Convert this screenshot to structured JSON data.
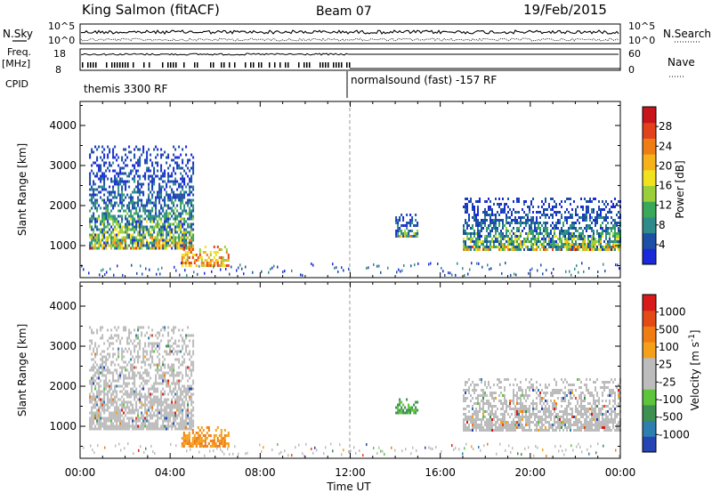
{
  "header": {
    "title": "King Salmon (fitACF)",
    "beam": "Beam 07",
    "date": "19/Feb/2015"
  },
  "summary_panel": {
    "nsky_label": "N.Sky",
    "nsky_ticks": [
      "10^5",
      "10^0"
    ],
    "nsearch_label": "N.Search",
    "nsearch_ticks": [
      "10^5",
      "10^0"
    ],
    "freq_label": "Freq.",
    "freq_unit": "[MHz]",
    "freq_ticks": [
      "18",
      "8"
    ],
    "nave_label": "Nave",
    "nave_ticks": [
      "60",
      "0"
    ],
    "cpid_label": "CPID",
    "cpid_segments": [
      {
        "label": "themis 3300 RF",
        "start_hour": 0
      },
      {
        "label": "normalsound (fast) -157 RF",
        "start_hour": 12
      }
    ]
  },
  "chart_data": [
    {
      "type": "heatmap",
      "name": "power-panel",
      "ylabel": "Slant Range [km]",
      "ylim": [
        200,
        4600
      ],
      "yticks": [
        1000,
        2000,
        3000,
        4000
      ],
      "xlim": [
        0,
        24
      ],
      "colorbar": {
        "label": "Power [dB]",
        "ticks": [
          "4",
          "8",
          "12",
          "16",
          "20",
          "24",
          "28"
        ],
        "colors": [
          "#1a2ad8",
          "#1c4fa6",
          "#2f8b8a",
          "#3aa85a",
          "#9bcf3a",
          "#f2e11e",
          "#f5b21b",
          "#ef7d16",
          "#e2421b",
          "#c8141b"
        ]
      },
      "regions": [
        {
          "x0": 0.4,
          "x1": 5.0,
          "y0": 900,
          "y1": 3500,
          "level": "weak-strong"
        },
        {
          "x0": 4.5,
          "x1": 6.6,
          "y0": 500,
          "y1": 1000,
          "level": "strong"
        },
        {
          "x0": 14.0,
          "x1": 15.0,
          "y0": 1200,
          "y1": 1800,
          "level": "weak"
        },
        {
          "x0": 17.0,
          "x1": 24.0,
          "y0": 900,
          "y1": 2200,
          "level": "weak-strong"
        }
      ]
    },
    {
      "type": "heatmap",
      "name": "velocity-panel",
      "ylabel": "Slant Range [km]",
      "xlabel": "Time UT",
      "ylim": [
        200,
        4600
      ],
      "yticks": [
        1000,
        2000,
        3000,
        4000
      ],
      "xlim": [
        0,
        24
      ],
      "xticks": [
        0,
        4,
        8,
        12,
        16,
        20,
        24
      ],
      "xticklabels": [
        "00:00",
        "04:00",
        "08:00",
        "12:00",
        "16:00",
        "20:00",
        "00:00"
      ],
      "colorbar": {
        "label": "Velocity [m s^-1]",
        "ticks": [
          "1000",
          "500",
          "100",
          "25",
          "-25",
          "-100",
          "-500",
          "-1000"
        ],
        "colors": [
          "#2644b4",
          "#2d7fb0",
          "#3d8f52",
          "#5dc53b",
          "#bcbcbc",
          "#bcbcbc",
          "#f5a01b",
          "#f07c14",
          "#e34a15",
          "#d81a1a"
        ]
      },
      "regions": [
        {
          "x0": 0.4,
          "x1": 5.0,
          "y0": 900,
          "y1": 3500,
          "level": "ground-scatter"
        },
        {
          "x0": 4.5,
          "x1": 6.6,
          "y0": 500,
          "y1": 1000,
          "level": "away"
        },
        {
          "x0": 14.0,
          "x1": 15.0,
          "y0": 1300,
          "y1": 1700,
          "level": "toward"
        },
        {
          "x0": 17.0,
          "x1": 24.0,
          "y0": 900,
          "y1": 2200,
          "level": "ground-scatter"
        }
      ]
    }
  ]
}
